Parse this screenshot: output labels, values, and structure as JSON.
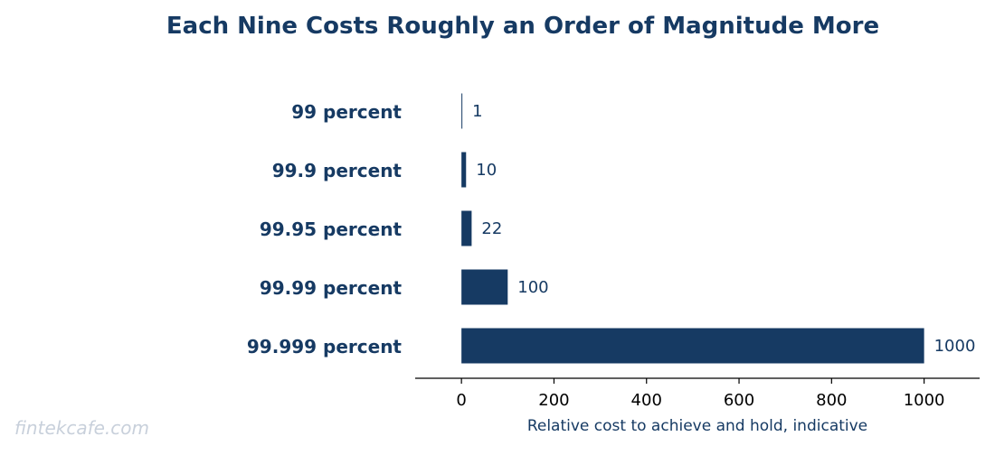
{
  "chart_data": {
    "type": "bar",
    "orientation": "horizontal",
    "title": "Each Nine Costs Roughly an Order of Magnitude More",
    "xlabel": "Relative cost to achieve and hold, indicative",
    "ylabel": "",
    "categories": [
      "99 percent",
      "99.9 percent",
      "99.95 percent",
      "99.99 percent",
      "99.999 percent"
    ],
    "values": [
      1,
      10,
      22,
      100,
      1000
    ],
    "value_labels": [
      "1",
      "10",
      "22",
      "100",
      "1000"
    ],
    "xlim": [
      -100,
      1120
    ],
    "xticks": [
      0,
      200,
      400,
      600,
      800,
      1000
    ],
    "xtick_labels": [
      "0",
      "200",
      "400",
      "600",
      "800",
      "1000"
    ],
    "grid": false
  },
  "watermark": "fintekcafe.com",
  "colors": {
    "bar": "#163a63",
    "title": "#163a63",
    "text": "#163a63",
    "axis": "#000000",
    "watermark": "#c8d0db"
  }
}
